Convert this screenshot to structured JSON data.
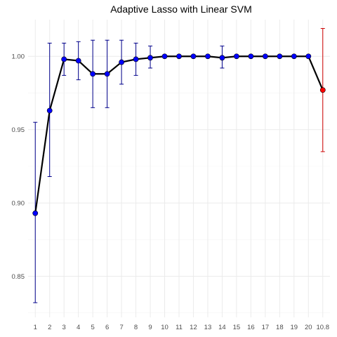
{
  "chart_data": {
    "type": "line",
    "title": "Adaptive Lasso with Linear SVM",
    "xlabel": "",
    "ylabel": "",
    "categories": [
      "1",
      "2",
      "3",
      "4",
      "5",
      "6",
      "7",
      "8",
      "9",
      "10",
      "11",
      "12",
      "13",
      "14",
      "15",
      "16",
      "17",
      "18",
      "19",
      "20",
      "10.8"
    ],
    "values": [
      0.893,
      0.963,
      0.998,
      0.997,
      0.988,
      0.988,
      0.996,
      0.998,
      0.999,
      1.0,
      1.0,
      1.0,
      1.0,
      0.999,
      1.0,
      1.0,
      1.0,
      1.0,
      1.0,
      1.0,
      0.977
    ],
    "error_low": [
      0.832,
      0.918,
      0.987,
      0.984,
      0.965,
      0.965,
      0.981,
      0.987,
      0.992,
      1.0,
      1.0,
      1.0,
      1.0,
      0.992,
      1.0,
      1.0,
      1.0,
      1.0,
      1.0,
      1.0,
      0.935
    ],
    "error_high": [
      0.955,
      1.009,
      1.009,
      1.01,
      1.011,
      1.011,
      1.011,
      1.009,
      1.007,
      1.0,
      1.0,
      1.0,
      1.0,
      1.007,
      1.0,
      1.0,
      1.0,
      1.0,
      1.0,
      1.0,
      1.019
    ],
    "highlight_index": 20,
    "ylim": [
      0.822,
      1.025
    ],
    "yticks": [
      0.85,
      0.9,
      0.95,
      1.0
    ],
    "ytick_labels": [
      "0.85",
      "0.90",
      "0.95",
      "1.00"
    ],
    "grid": true,
    "legend": "none",
    "colors": {
      "point": "#0000ff",
      "error_bar": "#00008b",
      "highlight": "#ff0000",
      "highlight_error_bar": "#cd0000",
      "line": "#000000"
    }
  }
}
